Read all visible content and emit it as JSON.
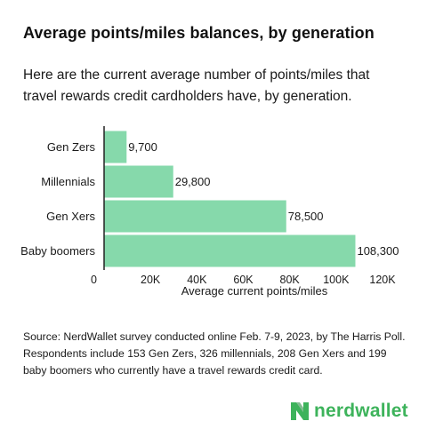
{
  "title": "Average points/miles balances, by generation",
  "subtitle": "Here are the current average number of points/miles that travel rewards credit cardholders have, by generation.",
  "chart_data": {
    "type": "bar",
    "orientation": "horizontal",
    "categories": [
      "Gen Zers",
      "Millennials",
      "Gen Xers",
      "Baby boomers"
    ],
    "values": [
      9700,
      29800,
      78500,
      108300
    ],
    "value_labels": [
      "9,700",
      "29,800",
      "78,500",
      "108,300"
    ],
    "xlabel": "Average current points/miles",
    "ylabel": "",
    "xlim": [
      0,
      120000
    ],
    "ticks": [
      0,
      20000,
      40000,
      60000,
      80000,
      100000,
      120000
    ],
    "tick_labels": [
      "0",
      "20K",
      "40K",
      "60K",
      "80K",
      "100K",
      "120K"
    ],
    "grid": false,
    "bar_color": "#86d9ab"
  },
  "source": "Source: NerdWallet survey conducted online Feb. 7-9, 2023, by The Harris Poll. Respondents include 153 Gen Zers, 326 millennials, 208 Gen Xers and 199 baby boomers who currently have a travel rewards credit card.",
  "brand": {
    "name": "nerdwallet",
    "icon": "nerdwallet-logo-icon",
    "color": "#3db35b"
  }
}
